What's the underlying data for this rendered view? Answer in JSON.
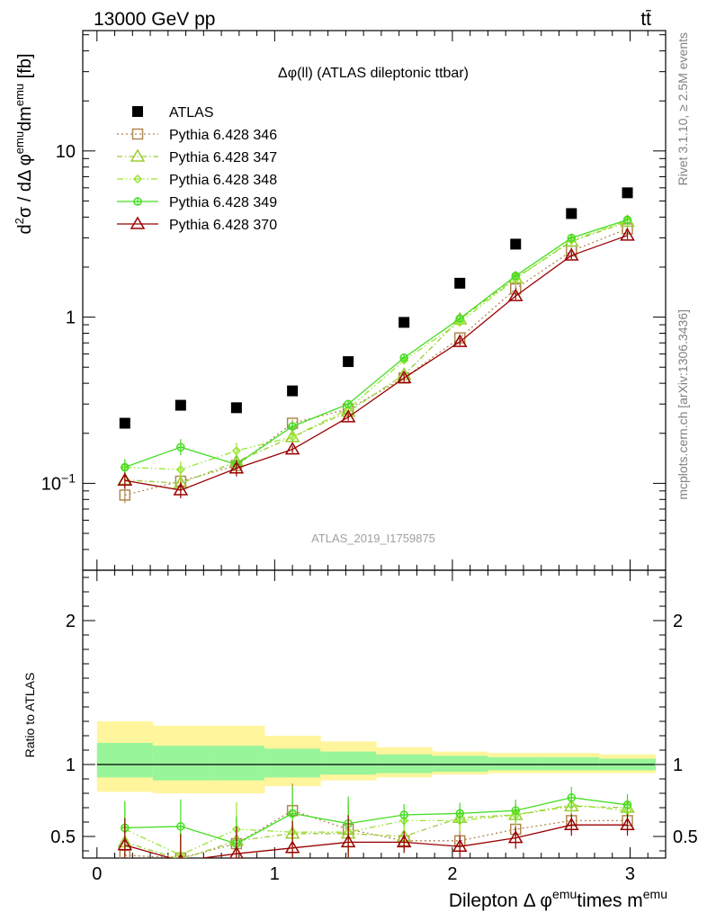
{
  "header": {
    "left": "13000 GeV pp",
    "right": "tt̄"
  },
  "side": {
    "rivet": "Rivet 3.1.10, ≥ 2.5M events",
    "mcplots": "mcplots.cern.ch [arXiv:1306.3436]"
  },
  "watermark": "ATLAS_2019_I1759875",
  "chart_data": [
    {
      "type": "scatter",
      "title": "Δφ(ll) (ATLAS dileptonic ttbar)",
      "ylabel": "d²σ / dΔ φ^emu dm^emu [fb]",
      "yscale": "log",
      "xlim": [
        -0.08,
        3.2
      ],
      "ylim": [
        0.03,
        53
      ],
      "yticklabels": [
        {
          "v": 0.1,
          "base": "10",
          "exp": "−1"
        },
        {
          "v": 1,
          "base": "1",
          "exp": ""
        },
        {
          "v": 10,
          "base": "10",
          "exp": ""
        }
      ],
      "legend_position": "top-left",
      "x": [
        0.157,
        0.471,
        0.785,
        1.1,
        1.414,
        1.728,
        2.042,
        2.356,
        2.67,
        2.985
      ],
      "series": [
        {
          "name": "ATLAS",
          "style": "data",
          "color": "#000000",
          "values": [
            0.23,
            0.295,
            0.285,
            0.36,
            0.54,
            0.93,
            1.6,
            2.75,
            4.2,
            5.6
          ]
        },
        {
          "name": "Pythia 6.428 346",
          "style": "dotted",
          "marker": "square",
          "color": "#b08850",
          "values": [
            0.085,
            0.103,
            0.128,
            0.23,
            0.28,
            0.43,
            0.75,
            1.48,
            2.5,
            3.4
          ]
        },
        {
          "name": "Pythia 6.428 347",
          "style": "dashdot",
          "marker": "triangle",
          "color": "#9acd32",
          "values": [
            0.105,
            0.1,
            0.135,
            0.19,
            0.27,
            0.45,
            0.97,
            1.72,
            2.85,
            3.75
          ]
        },
        {
          "name": "Pythia 6.428 348",
          "style": "dashdotdot",
          "marker": "diamond",
          "color": "#99e533",
          "values": [
            0.125,
            0.121,
            0.157,
            0.19,
            0.28,
            0.55,
            0.93,
            1.7,
            2.9,
            3.8
          ]
        },
        {
          "name": "Pythia 6.428 349",
          "style": "solid",
          "marker": "circle-cross",
          "color": "#44dd22",
          "values": [
            0.125,
            0.165,
            0.13,
            0.22,
            0.3,
            0.57,
            0.98,
            1.77,
            3.0,
            3.85
          ]
        },
        {
          "name": "Pythia 6.428 370",
          "style": "solid",
          "marker": "triangle",
          "color": "#990000",
          "values": [
            0.104,
            0.091,
            0.123,
            0.16,
            0.25,
            0.43,
            0.71,
            1.34,
            2.35,
            3.1
          ]
        }
      ]
    },
    {
      "type": "scatter",
      "xlabel": "Dilepton Δ φ^emu times m^emu",
      "ylabel": "Ratio to ATLAS",
      "xlim": [
        -0.08,
        3.2
      ],
      "ylim": [
        0.35,
        2.35
      ],
      "xticks": [
        0,
        1,
        2,
        3
      ],
      "yticks": [
        0.5,
        1,
        2
      ],
      "band_edges": [
        0.0,
        0.314,
        0.628,
        0.942,
        1.257,
        1.571,
        1.885,
        2.199,
        2.513,
        2.827,
        3.142
      ],
      "band_inner": [
        [
          0.91,
          1.15
        ],
        [
          0.89,
          1.13
        ],
        [
          0.89,
          1.13
        ],
        [
          0.91,
          1.11
        ],
        [
          0.93,
          1.09
        ],
        [
          0.94,
          1.07
        ],
        [
          0.95,
          1.06
        ],
        [
          0.96,
          1.05
        ],
        [
          0.96,
          1.05
        ],
        [
          0.96,
          1.04
        ]
      ],
      "band_outer": [
        [
          0.81,
          1.3
        ],
        [
          0.8,
          1.27
        ],
        [
          0.8,
          1.27
        ],
        [
          0.85,
          1.2
        ],
        [
          0.89,
          1.16
        ],
        [
          0.91,
          1.12
        ],
        [
          0.93,
          1.09
        ],
        [
          0.94,
          1.08
        ],
        [
          0.94,
          1.08
        ],
        [
          0.94,
          1.07
        ]
      ],
      "series": [
        {
          "name": "Pythia 6.428 346",
          "style": "dotted",
          "marker": "square",
          "color": "#b08850",
          "values": [
            0.37,
            0.35,
            0.45,
            0.68,
            0.55,
            0.47,
            0.47,
            0.55,
            0.61,
            0.61
          ]
        },
        {
          "name": "Pythia 6.428 347",
          "style": "dashdot",
          "marker": "triangle",
          "color": "#9acd32",
          "values": [
            0.46,
            0.34,
            0.47,
            0.52,
            0.52,
            0.5,
            0.63,
            0.65,
            0.71,
            0.7
          ]
        },
        {
          "name": "Pythia 6.428 348",
          "style": "dashdotdot",
          "marker": "diamond",
          "color": "#99e533",
          "values": [
            0.55,
            0.37,
            0.55,
            0.53,
            0.53,
            0.61,
            0.61,
            0.65,
            0.72,
            0.68
          ]
        },
        {
          "name": "Pythia 6.428 349",
          "style": "solid",
          "marker": "circle-cross",
          "color": "#44dd22",
          "values": [
            0.56,
            0.57,
            0.45,
            0.66,
            0.59,
            0.65,
            0.66,
            0.68,
            0.77,
            0.72
          ]
        },
        {
          "name": "Pythia 6.428 370",
          "style": "solid",
          "marker": "triangle",
          "color": "#990000",
          "values": [
            0.44,
            0.33,
            0.38,
            0.42,
            0.46,
            0.46,
            0.43,
            0.49,
            0.58,
            0.58
          ]
        }
      ]
    }
  ]
}
